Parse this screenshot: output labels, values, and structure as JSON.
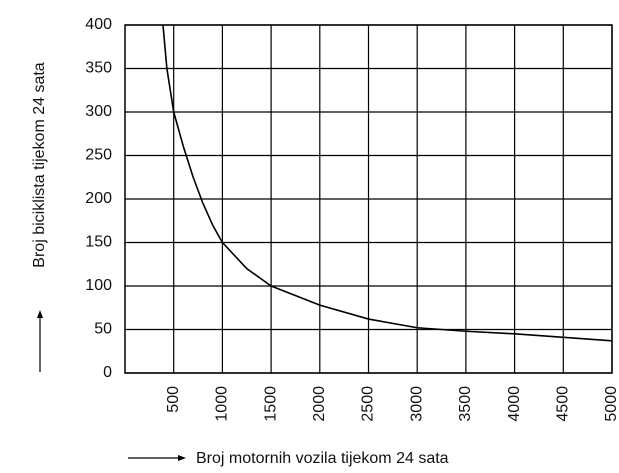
{
  "chart_data": {
    "type": "line",
    "x_label": "Broj motornih vozila tijekom 24 sata",
    "y_label": "Broj biciklista tijekom 24 sata",
    "x": [
      390,
      430,
      500,
      600,
      700,
      800,
      900,
      1000,
      1250,
      1500,
      2000,
      2500,
      3000,
      3500,
      4000,
      4500,
      5000
    ],
    "values": [
      400,
      350,
      300,
      260,
      225,
      195,
      170,
      150,
      120,
      100,
      78,
      62,
      52,
      48,
      45,
      41,
      37
    ],
    "color": "#000000",
    "xlim": [
      0,
      5000
    ],
    "xticks": [
      500,
      1000,
      1500,
      2000,
      2500,
      3000,
      3500,
      4000,
      4500,
      5000
    ],
    "ylim": [
      0,
      400
    ],
    "yticks": [
      0,
      50,
      100,
      150,
      200,
      250,
      300,
      350,
      400
    ],
    "grid": true
  }
}
